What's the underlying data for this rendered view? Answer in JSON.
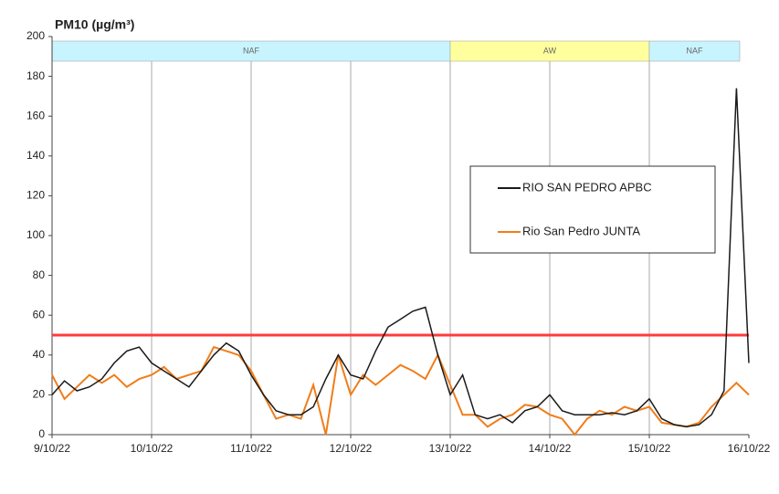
{
  "chart_data": {
    "type": "line",
    "title": "PM10 (µg/m³)",
    "xticks": [
      "9/10/22",
      "10/10/22",
      "11/10/22",
      "12/10/22",
      "13/10/22",
      "14/10/22",
      "15/10/22",
      "16/10/22"
    ],
    "ylim": [
      0,
      200
    ],
    "yticks": [
      0,
      20,
      40,
      60,
      80,
      100,
      120,
      140,
      160,
      180,
      200
    ],
    "grid": "x",
    "legend": "right",
    "reference_line": {
      "value": 50,
      "color": "#ff3b3b"
    },
    "bands": [
      {
        "label": "NAF",
        "from": "9/10/22",
        "to": "13/10/22",
        "color": "#c8f4ff"
      },
      {
        "label": "AW",
        "from": "13/10/22",
        "to": "15/10/22",
        "color": "#ffff9e"
      },
      {
        "label": "NAF",
        "from": "15/10/22",
        "to": "16/10/22",
        "color": "#c8f4ff"
      }
    ],
    "series": [
      {
        "name": "RIO SAN PEDRO APBC",
        "color": "#1a1a1a",
        "values": [
          20,
          27,
          22,
          24,
          28,
          36,
          42,
          44,
          36,
          32,
          28,
          24,
          32,
          40,
          46,
          42,
          30,
          20,
          12,
          10,
          10,
          14,
          28,
          40,
          30,
          28,
          42,
          54,
          58,
          62,
          64,
          40,
          20,
          30,
          10,
          8,
          10,
          6,
          12,
          14,
          20,
          12,
          10,
          10,
          10,
          11,
          10,
          12,
          18,
          8,
          5,
          4,
          5,
          10,
          22,
          174,
          36
        ]
      },
      {
        "name": "Rio San Pedro JUNTA",
        "color": "#f07d1a",
        "values": [
          30,
          18,
          24,
          30,
          26,
          30,
          24,
          28,
          30,
          34,
          28,
          30,
          32,
          44,
          42,
          40,
          32,
          20,
          8,
          10,
          8,
          25,
          0,
          40,
          20,
          30,
          25,
          30,
          35,
          32,
          28,
          40,
          25,
          10,
          10,
          4,
          8,
          10,
          15,
          14,
          10,
          8,
          0,
          8,
          12,
          10,
          14,
          12,
          14,
          6,
          5,
          4,
          6,
          14,
          20,
          26,
          20
        ]
      }
    ]
  }
}
